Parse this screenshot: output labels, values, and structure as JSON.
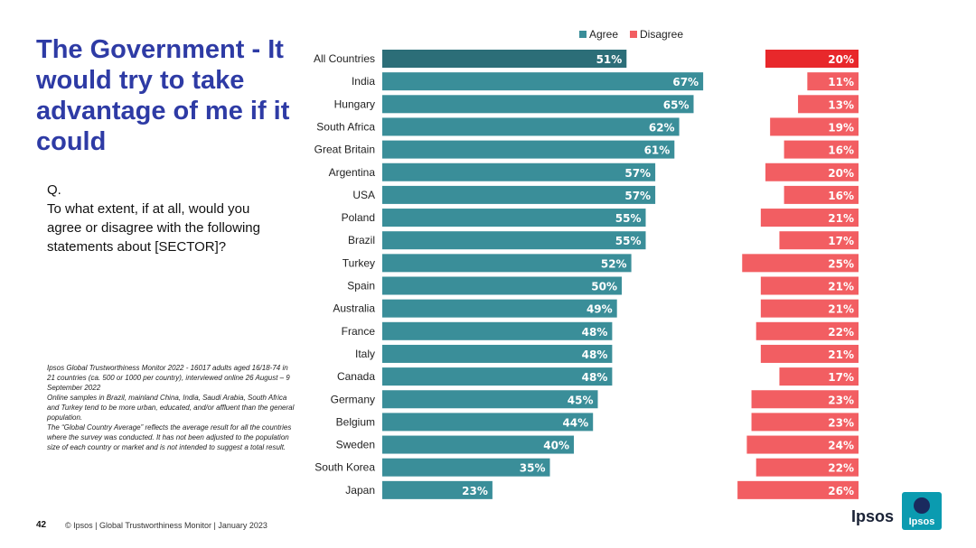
{
  "title": "The Government - It would try to take advantage of me if it could",
  "question": {
    "prefix": "Q.",
    "text": "To what extent, if at all, would you agree or disagree with the following statements about [SECTOR]?"
  },
  "notes": [
    "Ipsos Global Trustworthiness Monitor 2022 - 16017 adults aged 16/18-74 in 21 countries (ca. 500 or 1000 per country), interviewed online 26 August – 9 September 2022",
    "Online samples in Brazil, mainland China, India, Saudi Arabia, South Africa and Turkey tend to be more urban, educated, and/or affluent than the general population.",
    "The “Global Country Average” reflects the average result for all the countries where the survey was conducted. It has not been adjusted to the population size of each country or market and is not intended to suggest a total result."
  ],
  "footer": {
    "page_number": "42",
    "text": "© Ipsos | Global Trustworthiness Monitor | January 2023"
  },
  "logo": {
    "text": "Ipsos",
    "badge_text": "Ipsos"
  },
  "colors": {
    "agree": "#3a8e99",
    "agree_highlight": "#2c6e78",
    "disagree": "#f25e62",
    "disagree_highlight": "#e8282b",
    "title": "#2e3ba5"
  },
  "chart_data": {
    "type": "bar",
    "orientation": "horizontal",
    "legend": [
      "Agree",
      "Disagree"
    ],
    "legend_position": "top",
    "categories": [
      "All Countries",
      "India",
      "Hungary",
      "South Africa",
      "Great Britain",
      "Argentina",
      "USA",
      "Poland",
      "Brazil",
      "Turkey",
      "Spain",
      "Australia",
      "France",
      "Italy",
      "Canada",
      "Germany",
      "Belgium",
      "Sweden",
      "South Korea",
      "Japan"
    ],
    "series": [
      {
        "name": "Agree",
        "values": [
          51,
          67,
          65,
          62,
          61,
          57,
          57,
          55,
          55,
          52,
          50,
          49,
          48,
          48,
          48,
          45,
          44,
          40,
          35,
          23
        ]
      },
      {
        "name": "Disagree",
        "values": [
          20,
          11,
          13,
          19,
          16,
          20,
          16,
          21,
          17,
          25,
          21,
          21,
          22,
          21,
          17,
          23,
          23,
          24,
          22,
          26
        ]
      }
    ],
    "value_suffix": "%"
  }
}
